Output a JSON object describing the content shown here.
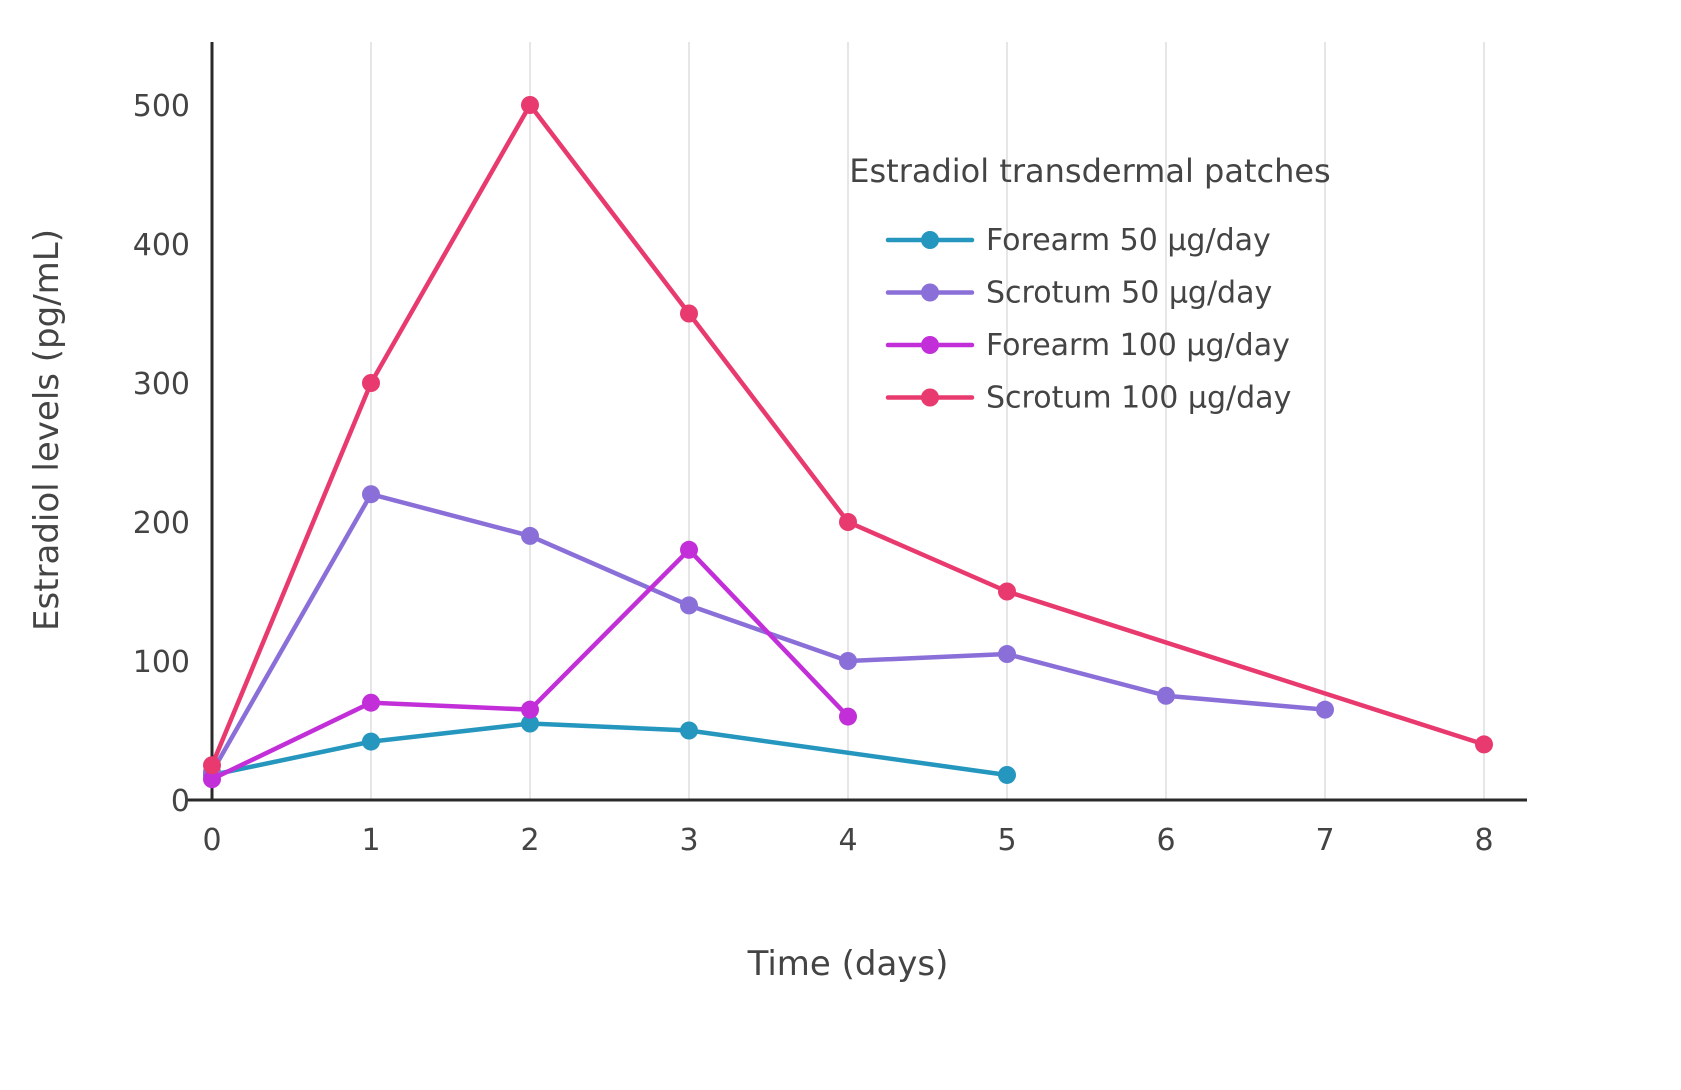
{
  "chart_data": {
    "type": "line",
    "legend_title": "Estradiol transdermal patches",
    "xlabel": "Time (days)",
    "ylabel": "Estradiol levels (pg/mL)",
    "xlim": [
      0,
      8
    ],
    "ylim": [
      0,
      540
    ],
    "xticks": [
      0,
      1,
      2,
      3,
      4,
      5,
      6,
      7,
      8
    ],
    "yticks": [
      0,
      100,
      200,
      300,
      400,
      500
    ],
    "grid": {
      "vertical": true,
      "horizontal": false
    },
    "legend_position": "top-right-inside",
    "colors": {
      "axis": "#2a2a2a",
      "gridline": "#e6e6e6",
      "text": "#444444"
    },
    "series": [
      {
        "name": "Forearm 50 µg/day",
        "color": "#2596be",
        "x": [
          0,
          1,
          2,
          3,
          5
        ],
        "y": [
          18,
          42,
          55,
          50,
          18
        ]
      },
      {
        "name": "Scrotum 50 µg/day",
        "color": "#8b6fd8",
        "x": [
          0,
          1,
          2,
          3,
          4,
          5,
          6,
          7
        ],
        "y": [
          20,
          220,
          190,
          140,
          100,
          105,
          75,
          65
        ]
      },
      {
        "name": "Forearm 100 µg/day",
        "color": "#c22fd9",
        "x": [
          0,
          1,
          2,
          3,
          4
        ],
        "y": [
          15,
          70,
          65,
          180,
          60
        ]
      },
      {
        "name": "Scrotum 100 µg/day",
        "color": "#e83a6e",
        "x": [
          0,
          1,
          2,
          3,
          4,
          5,
          8
        ],
        "y": [
          25,
          300,
          500,
          350,
          200,
          150,
          40
        ]
      }
    ]
  }
}
